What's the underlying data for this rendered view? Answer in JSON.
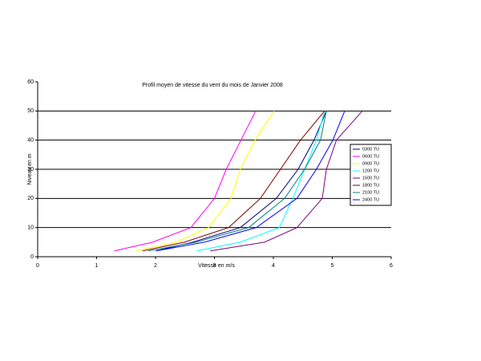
{
  "chart_data": {
    "type": "line",
    "title": "Profil moyen de vitesse du vent du mois de Janvier 2008",
    "x_label": "Vitesse en m/s",
    "y_label": "Niveau en m",
    "xlim": [
      0,
      6
    ],
    "xticks": [
      0,
      1,
      2,
      3,
      4,
      5,
      6
    ],
    "ylim": [
      0,
      60
    ],
    "yticks": [
      0,
      10,
      20,
      30,
      40,
      50,
      60
    ],
    "grid": true,
    "legend": "right",
    "series": [
      {
        "name": "0300 TU",
        "color": "#000080",
        "x": [
          2.01,
          2.63,
          3.44,
          4.05,
          4.42,
          4.69,
          4.9
        ],
        "values": [
          2,
          5,
          10,
          20,
          30,
          40,
          50
        ]
      },
      {
        "name": "0600 TU",
        "color": "#ff00ff",
        "x": [
          1.3,
          1.95,
          2.6,
          3.0,
          3.2,
          3.45,
          3.7
        ],
        "values": [
          2,
          5,
          10,
          20,
          30,
          40,
          50
        ]
      },
      {
        "name": "0900 TU",
        "color": "#ffff00",
        "x": [
          1.67,
          2.35,
          2.9,
          3.28,
          3.44,
          3.69,
          4.01
        ],
        "values": [
          2,
          5,
          10,
          20,
          30,
          40,
          50
        ]
      },
      {
        "name": "1200 TU",
        "color": "#00ffff",
        "x": [
          2.7,
          3.44,
          4.1,
          4.33,
          4.53,
          4.73,
          4.87
        ],
        "values": [
          2,
          5,
          10,
          20,
          30,
          40,
          50
        ]
      },
      {
        "name": "1500 TU",
        "color": "#800080",
        "x": [
          2.93,
          3.85,
          4.4,
          4.83,
          4.9,
          5.07,
          5.51
        ],
        "values": [
          2,
          5,
          10,
          20,
          30,
          40,
          50
        ]
      },
      {
        "name": "1800 TU",
        "color": "#800000",
        "x": [
          1.78,
          2.49,
          3.24,
          3.78,
          4.12,
          4.46,
          4.87
        ],
        "values": [
          2,
          5,
          10,
          20,
          30,
          40,
          50
        ]
      },
      {
        "name": "2100 TU",
        "color": "#008080",
        "x": [
          1.88,
          2.69,
          3.58,
          4.19,
          4.53,
          4.8,
          4.9
        ],
        "values": [
          2,
          5,
          10,
          20,
          30,
          40,
          50
        ]
      },
      {
        "name": "2400 TU",
        "color": "#0000ff",
        "x": [
          2.01,
          2.83,
          3.71,
          4.4,
          4.73,
          5.01,
          5.21
        ],
        "values": [
          2,
          5,
          10,
          20,
          30,
          40,
          50
        ]
      }
    ]
  }
}
